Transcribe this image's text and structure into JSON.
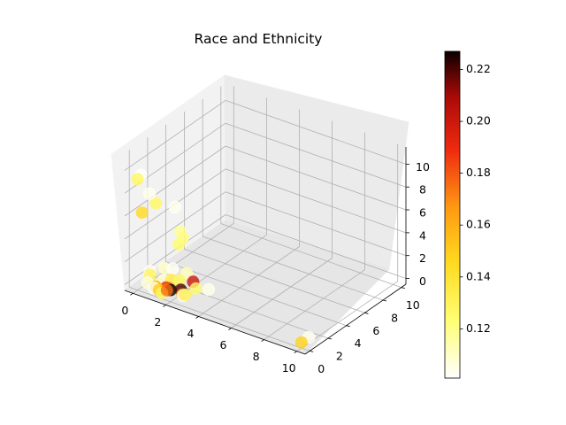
{
  "chart_data": {
    "type": "scatter",
    "title": "Race and Ethnicity",
    "projection": "3d",
    "xlabel": "",
    "ylabel": "",
    "zlabel": "",
    "xlim": [
      -0.5,
      10.5
    ],
    "ylim": [
      -0.5,
      10.5
    ],
    "zlim": [
      -0.5,
      11.5
    ],
    "xticks": [
      0,
      2,
      4,
      6,
      8,
      10
    ],
    "yticks": [
      0,
      2,
      4,
      6,
      8,
      10
    ],
    "zticks": [
      0,
      2,
      4,
      6,
      8,
      10
    ],
    "grid": true,
    "colormap": "hot_r",
    "point_alpha": 0.8,
    "colorbar": {
      "min": 0.101,
      "max": 0.227,
      "ticks": [
        0.12,
        0.14,
        0.16,
        0.18,
        0.2,
        0.22
      ],
      "tick_labels": [
        "0.12",
        "0.14",
        "0.16",
        "0.18",
        "0.20",
        "0.22"
      ]
    },
    "points": [
      {
        "x": 0.1,
        "y": 0.2,
        "z": 9.5,
        "c": 0.102
      },
      {
        "x": 0.0,
        "y": 0.0,
        "z": 9.2,
        "c": 0.128
      },
      {
        "x": 0.4,
        "y": 0.6,
        "z": 7.8,
        "c": 0.104
      },
      {
        "x": 1.0,
        "y": 2.3,
        "z": 6.0,
        "c": 0.104
      },
      {
        "x": 0.0,
        "y": 2.0,
        "z": 6.0,
        "c": 0.128
      },
      {
        "x": 0.0,
        "y": 0.5,
        "z": 6.0,
        "c": 0.145
      },
      {
        "x": 1.5,
        "y": 2.0,
        "z": 4.3,
        "c": 0.118
      },
      {
        "x": 1.6,
        "y": 2.1,
        "z": 3.7,
        "c": 0.122
      },
      {
        "x": 1.4,
        "y": 2.0,
        "z": 3.1,
        "c": 0.125
      },
      {
        "x": 2.5,
        "y": 0.5,
        "z": 0.0,
        "c": 0.103
      },
      {
        "x": 1.0,
        "y": 1.0,
        "z": 0.3,
        "c": 0.108
      },
      {
        "x": 0.5,
        "y": 0.5,
        "z": 0.8,
        "c": 0.13
      },
      {
        "x": 0.8,
        "y": 0.5,
        "z": 0.0,
        "c": 0.125
      },
      {
        "x": 1.0,
        "y": 0.0,
        "z": 0.2,
        "c": 0.104
      },
      {
        "x": 1.5,
        "y": 1.0,
        "z": 0.6,
        "c": 0.135
      },
      {
        "x": 2.0,
        "y": 1.0,
        "z": 0.8,
        "c": 0.128
      },
      {
        "x": 1.2,
        "y": 0.2,
        "z": 0.0,
        "c": 0.15
      },
      {
        "x": 1.8,
        "y": 0.4,
        "z": 0.2,
        "c": 0.227
      },
      {
        "x": 2.2,
        "y": 0.8,
        "z": 0.2,
        "c": 0.22
      },
      {
        "x": 1.6,
        "y": 0.5,
        "z": 0.2,
        "c": 0.18
      },
      {
        "x": 2.5,
        "y": 1.6,
        "z": 0.6,
        "c": 0.2
      },
      {
        "x": 1.4,
        "y": 0.6,
        "z": 0.1,
        "c": 0.19
      },
      {
        "x": 1.0,
        "y": 0.2,
        "z": 0.2,
        "c": 0.16
      },
      {
        "x": 2.4,
        "y": 0.6,
        "z": 0.0,
        "c": 0.165
      },
      {
        "x": 1.8,
        "y": 0.0,
        "z": 0.4,
        "c": 0.175
      },
      {
        "x": 3.0,
        "y": 1.0,
        "z": 0.6,
        "c": 0.125
      },
      {
        "x": 2.8,
        "y": 0.2,
        "z": 0.4,
        "c": 0.13
      },
      {
        "x": 1.5,
        "y": 0.0,
        "z": 0.0,
        "c": 0.128
      },
      {
        "x": 0.5,
        "y": 0.2,
        "z": 0.3,
        "c": 0.108
      },
      {
        "x": 0.2,
        "y": 1.0,
        "z": 0.7,
        "c": 0.104
      },
      {
        "x": 3.5,
        "y": 1.5,
        "z": 0.5,
        "c": 0.105
      },
      {
        "x": 1.3,
        "y": 1.5,
        "z": 1.2,
        "c": 0.103
      },
      {
        "x": 2.0,
        "y": 1.8,
        "z": 1.0,
        "c": 0.112
      },
      {
        "x": 0.8,
        "y": 1.5,
        "z": 1.0,
        "c": 0.11
      },
      {
        "x": 10.0,
        "y": 0.0,
        "z": 0.0,
        "c": 0.148
      },
      {
        "x": 10.0,
        "y": 0.8,
        "z": 0.0,
        "c": 0.104
      }
    ]
  }
}
